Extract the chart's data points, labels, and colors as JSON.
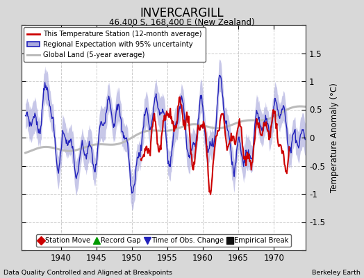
{
  "title": "INVERCARGILL",
  "subtitle": "46.400 S, 168.400 E (New Zealand)",
  "ylabel": "Temperature Anomaly (°C)",
  "xlabel_bottom_left": "Data Quality Controlled and Aligned at Breakpoints",
  "xlabel_bottom_right": "Berkeley Earth",
  "ylim": [
    -2,
    2
  ],
  "xlim": [
    1934.5,
    1974.5
  ],
  "yticks": [
    -2,
    -1.5,
    -1,
    -0.5,
    0,
    0.5,
    1,
    1.5,
    2
  ],
  "xticks": [
    1940,
    1945,
    1950,
    1955,
    1960,
    1965,
    1970
  ],
  "bg_color": "#d8d8d8",
  "plot_bg_color": "#ffffff",
  "station_color": "#cc0000",
  "regional_color": "#2222bb",
  "regional_fill_color": "#aaaadd",
  "global_color": "#bbbbbb",
  "legend1_labels": [
    "This Temperature Station (12-month average)",
    "Regional Expectation with 95% uncertainty",
    "Global Land (5-year average)"
  ],
  "legend2_labels": [
    "Station Move",
    "Record Gap",
    "Time of Obs. Change",
    "Empirical Break"
  ],
  "legend2_colors": [
    "#cc0000",
    "#009900",
    "#2222bb",
    "#111111"
  ],
  "legend2_markers": [
    "D",
    "^",
    "v",
    "s"
  ]
}
